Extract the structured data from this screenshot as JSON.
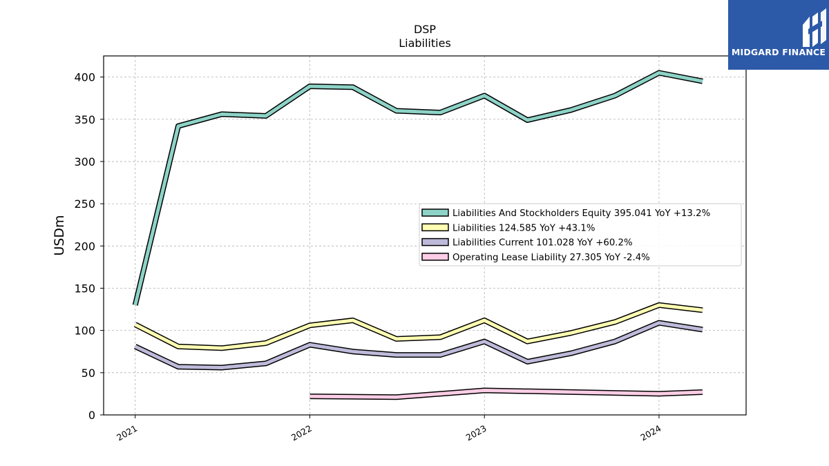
{
  "logo": {
    "text": "MIDGARD FINANCE",
    "bg_color": "#2d5aa8"
  },
  "chart_data": {
    "type": "line",
    "title": "DSP",
    "subtitle": "Liabilities",
    "ylabel": "USDm",
    "xlabel": "",
    "ylim": [
      0,
      425
    ],
    "y_ticks": [
      0,
      50,
      100,
      150,
      200,
      250,
      300,
      350,
      400
    ],
    "x_ticks": [
      "2021",
      "2022",
      "2023",
      "2024"
    ],
    "x_range": [
      "2020-10-27",
      "2024-07-01"
    ],
    "grid": true,
    "legend_position": "center-right",
    "series": [
      {
        "name": "Liabilities And Stockholders Equity  395.041 YoY +13.2%",
        "color": "#8dd3c7",
        "points": [
          [
            "2021-01-01",
            130
          ],
          [
            "2021-04-01",
            342
          ],
          [
            "2021-07-01",
            356
          ],
          [
            "2021-10-01",
            354
          ],
          [
            "2022-01-01",
            389
          ],
          [
            "2022-04-01",
            388
          ],
          [
            "2022-07-01",
            360
          ],
          [
            "2022-10-01",
            358
          ],
          [
            "2023-01-01",
            378
          ],
          [
            "2023-04-01",
            349
          ],
          [
            "2023-07-01",
            361
          ],
          [
            "2023-10-01",
            378
          ],
          [
            "2024-01-01",
            405
          ],
          [
            "2024-04-01",
            395
          ]
        ]
      },
      {
        "name": "Liabilities  124.585 YoY +43.1%",
        "color": "#ffffb3",
        "points": [
          [
            "2021-01-01",
            107
          ],
          [
            "2021-04-01",
            81
          ],
          [
            "2021-07-01",
            79
          ],
          [
            "2021-10-01",
            85
          ],
          [
            "2022-01-01",
            106
          ],
          [
            "2022-04-01",
            112
          ],
          [
            "2022-07-01",
            90
          ],
          [
            "2022-10-01",
            92
          ],
          [
            "2023-01-01",
            112
          ],
          [
            "2023-04-01",
            87
          ],
          [
            "2023-07-01",
            97
          ],
          [
            "2023-10-01",
            110
          ],
          [
            "2024-01-01",
            130
          ],
          [
            "2024-04-01",
            124
          ]
        ]
      },
      {
        "name": "Liabilities Current  101.028 YoY +60.2%",
        "color": "#bebada",
        "points": [
          [
            "2021-01-01",
            81
          ],
          [
            "2021-04-01",
            57
          ],
          [
            "2021-07-01",
            56
          ],
          [
            "2021-10-01",
            61
          ],
          [
            "2022-01-01",
            83
          ],
          [
            "2022-04-01",
            75
          ],
          [
            "2022-07-01",
            71
          ],
          [
            "2022-10-01",
            71
          ],
          [
            "2023-01-01",
            87
          ],
          [
            "2023-04-01",
            63
          ],
          [
            "2023-07-01",
            73
          ],
          [
            "2023-10-01",
            87
          ],
          [
            "2024-01-01",
            109
          ],
          [
            "2024-04-01",
            101
          ]
        ]
      },
      {
        "name": "Operating Lease Liability  27.305 YoY -2.4%",
        "color": "#fccde5",
        "points": [
          [
            "2022-01-01",
            22
          ],
          [
            "2022-07-01",
            21
          ],
          [
            "2023-01-01",
            29
          ],
          [
            "2024-01-01",
            25
          ],
          [
            "2024-04-01",
            27
          ]
        ]
      }
    ]
  }
}
